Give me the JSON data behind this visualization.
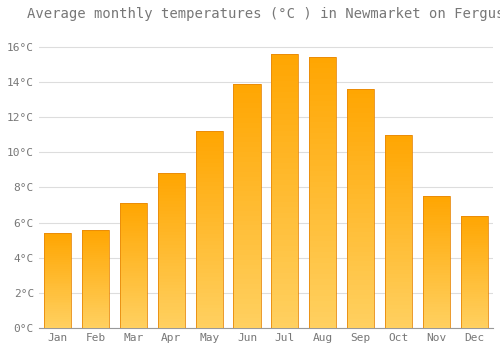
{
  "title": "Average monthly temperatures (°C ) in Newmarket on Fergus",
  "months": [
    "Jan",
    "Feb",
    "Mar",
    "Apr",
    "May",
    "Jun",
    "Jul",
    "Aug",
    "Sep",
    "Oct",
    "Nov",
    "Dec"
  ],
  "values": [
    5.4,
    5.6,
    7.1,
    8.8,
    11.2,
    13.9,
    15.6,
    15.4,
    13.6,
    11.0,
    7.5,
    6.4
  ],
  "bar_color_main": "#FFA500",
  "bar_color_light": "#FFD060",
  "bar_edge_color": "#E8890A",
  "background_color": "#FFFFFF",
  "plot_bg_color": "#FFFFFF",
  "grid_color": "#DDDDDD",
  "title_fontsize": 10,
  "tick_fontsize": 8,
  "ytick_labels": [
    "0°C",
    "2°C",
    "4°C",
    "6°C",
    "8°C",
    "10°C",
    "12°C",
    "14°C",
    "16°C"
  ],
  "ytick_values": [
    0,
    2,
    4,
    6,
    8,
    10,
    12,
    14,
    16
  ],
  "ylim": [
    0,
    17
  ],
  "text_color": "#777777"
}
